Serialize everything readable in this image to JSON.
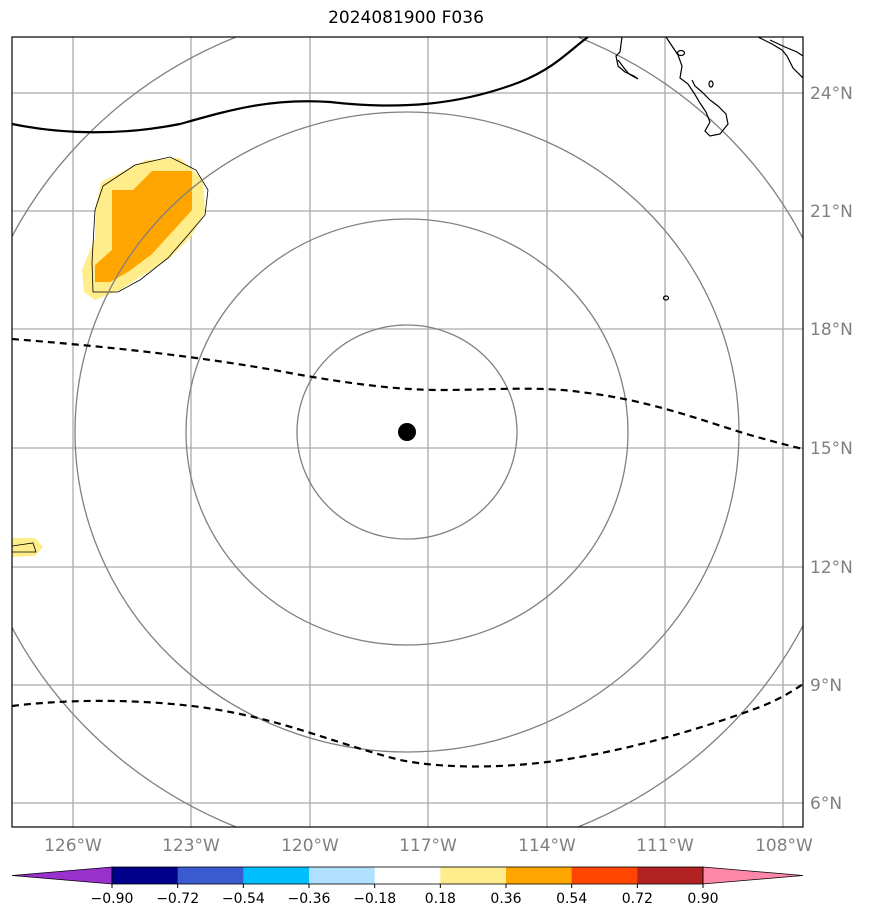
{
  "title": "2024081900 F036",
  "map": {
    "lon_range": [
      -127.5,
      -107.5
    ],
    "lat_range": [
      5.5,
      25.5
    ],
    "lon_ticks": [
      "126°W",
      "123°W",
      "120°W",
      "117°W",
      "114°W",
      "111°W",
      "108°W"
    ],
    "lat_ticks": [
      "24°N",
      "21°N",
      "18°N",
      "15°N",
      "12°N",
      "9°N",
      "6°N"
    ],
    "center_marker": {
      "lon": -117.5,
      "lat": 15.4
    },
    "range_ring_color": "#808080",
    "gridline_color": "#aaaaaa",
    "dashed_line_color": "#000000",
    "solid_line_color": "#000000"
  },
  "colorbar": {
    "levels": [
      "−0.90",
      "−0.72",
      "−0.54",
      "−0.36",
      "−0.18",
      "0.18",
      "0.36",
      "0.54",
      "0.72",
      "0.90"
    ],
    "colors": [
      "#9932cc",
      "#00008b",
      "#3a5bd0",
      "#00bfff",
      "#b0e0ff",
      "#ffffff",
      "#ffec8b",
      "#ffa500",
      "#ff4500",
      "#b22222",
      "#ff88aa"
    ]
  }
}
